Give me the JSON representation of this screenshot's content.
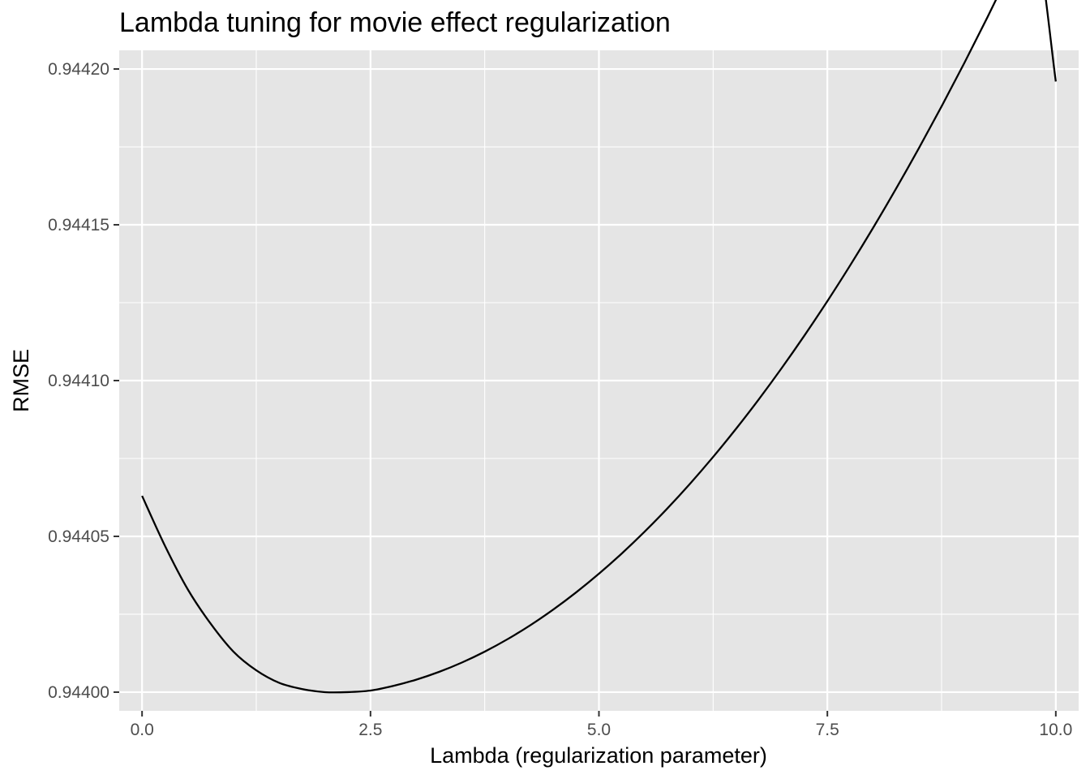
{
  "chart_data": {
    "type": "line",
    "title": "Lambda tuning for movie effect regularization",
    "xlabel": "Lambda (regularization parameter)",
    "ylabel": "RMSE",
    "xlim": [
      -0.25,
      10.25
    ],
    "ylim": [
      0.943994,
      0.944206
    ],
    "x_ticks": [
      0,
      2.5,
      5,
      7.5,
      10
    ],
    "x_tick_labels": [
      "0.0",
      "2.5",
      "5.0",
      "7.5",
      "10.0"
    ],
    "y_ticks": [
      0.944,
      0.94405,
      0.9441,
      0.94415,
      0.9442
    ],
    "y_tick_labels": [
      "0.94400",
      "0.94405",
      "0.94410",
      "0.94415",
      "0.94420"
    ],
    "grid": true,
    "panel_background": "#e5e5e5",
    "grid_color": "#ffffff",
    "line_color": "#000000",
    "series": [
      {
        "x": [
          0,
          0.25,
          0.5,
          0.75,
          1,
          1.25,
          1.5,
          1.75,
          2,
          2.25,
          2.5,
          2.75,
          3,
          3.25,
          3.5,
          3.75,
          4,
          4.25,
          4.5,
          4.75,
          5,
          5.25,
          5.5,
          5.75,
          6,
          6.25,
          6.5,
          6.75,
          7,
          7.25,
          7.5,
          7.75,
          8,
          8.25,
          8.5,
          8.75,
          9,
          9.25,
          9.5,
          9.75,
          10
        ],
        "y": [
          0.944063,
          0.944047,
          0.944033,
          0.944022,
          0.944013,
          0.944007,
          0.944003,
          0.944001,
          0.944,
          0.944,
          0.9440005,
          0.944002,
          0.944004,
          0.9440065,
          0.9440095,
          0.944013,
          0.944017,
          0.9440215,
          0.9440265,
          0.944032,
          0.944038,
          0.9440445,
          0.9440515,
          0.944059,
          0.944067,
          0.9440755,
          0.9440845,
          0.944094,
          0.944104,
          0.9441145,
          0.9441255,
          0.944137,
          0.944149,
          0.9441615,
          0.9441745,
          0.944188,
          0.944202,
          0.9442165,
          0.9442315,
          0.944247,
          0.944196
        ]
      }
    ]
  }
}
